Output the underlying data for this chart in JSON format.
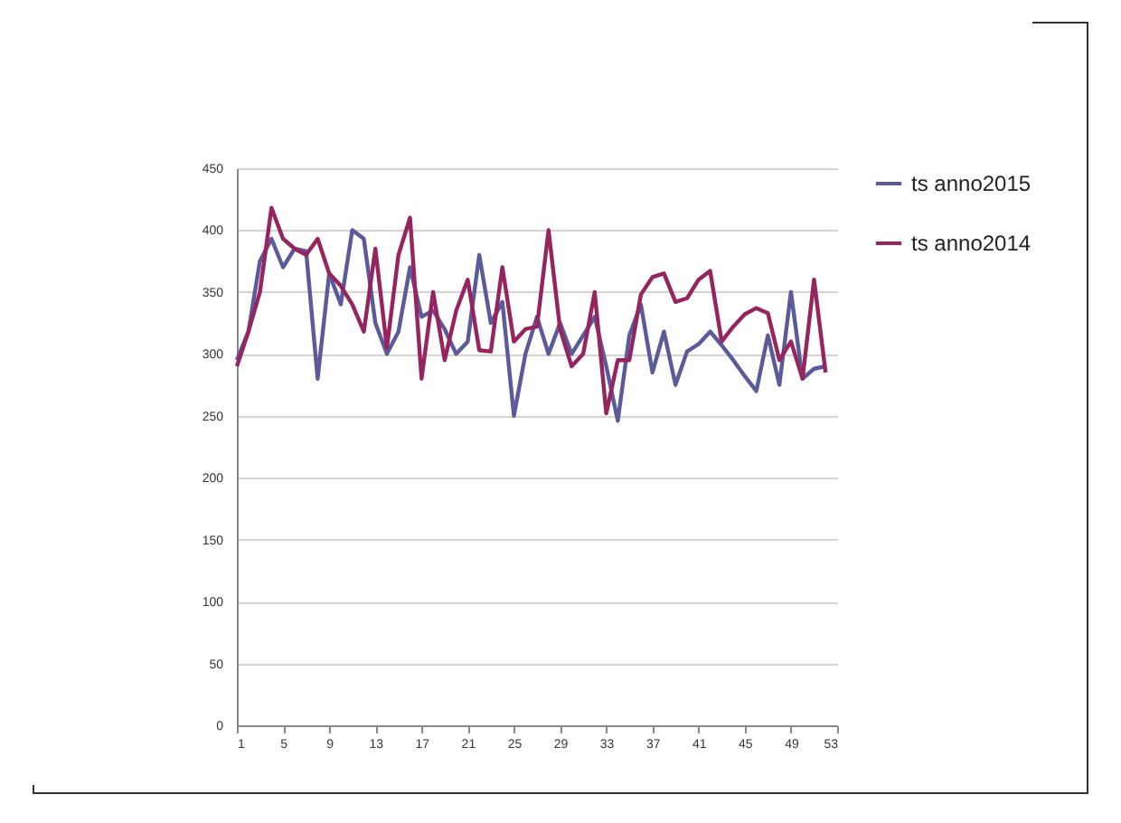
{
  "chart_data": {
    "type": "line",
    "x": [
      1,
      2,
      3,
      4,
      5,
      6,
      7,
      8,
      9,
      10,
      11,
      12,
      13,
      14,
      15,
      16,
      17,
      18,
      19,
      20,
      21,
      22,
      23,
      24,
      25,
      26,
      27,
      28,
      29,
      30,
      31,
      32,
      33,
      34,
      35,
      36,
      37,
      38,
      39,
      40,
      41,
      42,
      43,
      44,
      45,
      46,
      47,
      48,
      49,
      50,
      51,
      52
    ],
    "xlim": [
      1,
      53
    ],
    "xticks": [
      1,
      5,
      9,
      13,
      17,
      21,
      25,
      29,
      33,
      37,
      41,
      45,
      49,
      53
    ],
    "ylim": [
      0,
      450
    ],
    "yticks": [
      0,
      50,
      100,
      150,
      200,
      250,
      300,
      350,
      400,
      450
    ],
    "grid": "y",
    "legend": "right",
    "line_style": "solid",
    "marker": "none",
    "series": [
      {
        "name": "ts anno2015",
        "color": "#5b5b9c",
        "values": [
          295,
          318,
          375,
          393,
          370,
          385,
          383,
          280,
          365,
          340,
          400,
          393,
          325,
          300,
          318,
          370,
          330,
          335,
          320,
          300,
          310,
          380,
          325,
          342,
          250,
          300,
          330,
          300,
          325,
          300,
          315,
          330,
          290,
          246,
          315,
          340,
          285,
          318,
          275,
          302,
          308,
          318,
          307,
          295,
          282,
          270,
          315,
          275,
          350,
          280,
          288,
          290
        ]
      },
      {
        "name": "ts anno2014",
        "color": "#96245e",
        "values": [
          290,
          318,
          350,
          418,
          393,
          385,
          380,
          393,
          365,
          355,
          340,
          318,
          385,
          305,
          380,
          410,
          280,
          350,
          295,
          335,
          360,
          303,
          302,
          370,
          310,
          320,
          322,
          400,
          320,
          290,
          300,
          350,
          252,
          295,
          295,
          348,
          362,
          365,
          342,
          345,
          360,
          367,
          310,
          322,
          332,
          337,
          333,
          295,
          310,
          280,
          360,
          285
        ]
      }
    ]
  }
}
